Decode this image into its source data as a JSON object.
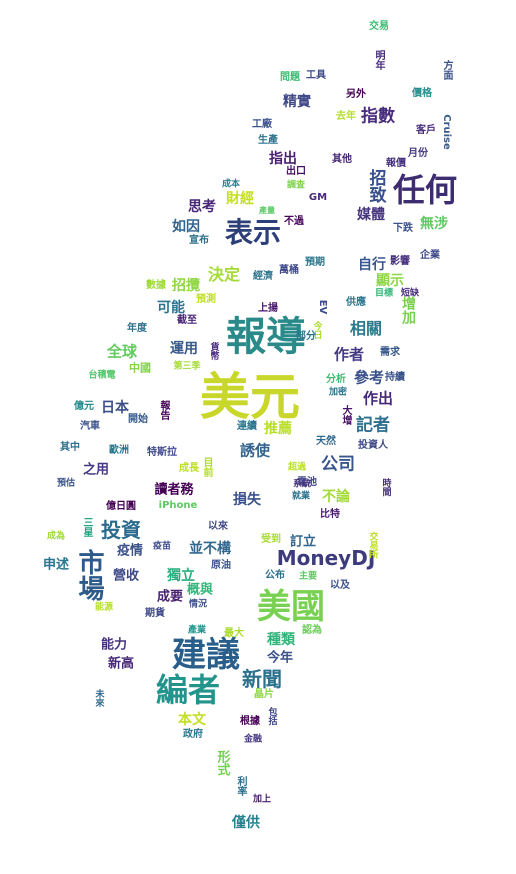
{
  "words": [
    {
      "text": "美元",
      "color": "#c8d72a"
    },
    {
      "text": "報導",
      "color": "#2a8a8a"
    },
    {
      "text": "任何",
      "color": "#3e2c70"
    },
    {
      "text": "表示",
      "color": "#2d3f78"
    },
    {
      "text": "建議",
      "color": "#2a5e8a"
    },
    {
      "text": "編者",
      "color": "#23948b"
    },
    {
      "text": "美國",
      "color": "#79d151"
    },
    {
      "text": "市場",
      "color": "#2e5a8a"
    },
    {
      "text": "MoneyDJ",
      "color": "#3d3b7e"
    },
    {
      "text": "新聞",
      "color": "#2a718e"
    },
    {
      "text": "投資",
      "color": "#2b6c8e"
    },
    {
      "text": "公司",
      "color": "#39568c"
    },
    {
      "text": "記者",
      "color": "#2d6f8e"
    },
    {
      "text": "指數",
      "color": "#472d7b"
    },
    {
      "text": "招致",
      "color": "#38508b"
    },
    {
      "text": "決定",
      "color": "#a5db36"
    },
    {
      "text": "相關",
      "color": "#2b7b8e"
    },
    {
      "text": "作者",
      "color": "#443a83"
    },
    {
      "text": "參考",
      "color": "#3b518b"
    },
    {
      "text": "作出",
      "color": "#472a7a"
    },
    {
      "text": "誘使",
      "color": "#33638d"
    },
    {
      "text": "全球",
      "color": "#62cb5f"
    },
    {
      "text": "日本",
      "color": "#3c4f8a"
    },
    {
      "text": "運用",
      "color": "#38598c"
    },
    {
      "text": "可能",
      "color": "#2b758e"
    },
    {
      "text": "招攬",
      "color": "#8fd744"
    },
    {
      "text": "如因",
      "color": "#32648e"
    },
    {
      "text": "思考",
      "color": "#482576"
    },
    {
      "text": "財經",
      "color": "#c5e021"
    },
    {
      "text": "媒體",
      "color": "#45337d"
    },
    {
      "text": "無涉",
      "color": "#5ec962"
    },
    {
      "text": "精實",
      "color": "#3f4889"
    },
    {
      "text": "指出",
      "color": "#481f70"
    },
    {
      "text": "自行",
      "color": "#3a548c"
    },
    {
      "text": "顯示",
      "color": "#8ed645"
    },
    {
      "text": "增加",
      "color": "#7ad151"
    },
    {
      "text": "推薦",
      "color": "#b8de29"
    },
    {
      "text": "讀者務",
      "color": "#440154"
    },
    {
      "text": "損失",
      "color": "#3b528b"
    },
    {
      "text": "不論",
      "color": "#a2da37"
    },
    {
      "text": "之用",
      "color": "#453781"
    },
    {
      "text": "並不構",
      "color": "#31688e"
    },
    {
      "text": "訂立",
      "color": "#32658e"
    },
    {
      "text": "獨立",
      "color": "#29af7f"
    },
    {
      "text": "成要",
      "color": "#482071"
    },
    {
      "text": "概與",
      "color": "#34b679"
    },
    {
      "text": "種類",
      "color": "#31b57b"
    },
    {
      "text": "今年",
      "color": "#3b518b"
    },
    {
      "text": "能力",
      "color": "#46327e"
    },
    {
      "text": "新高",
      "color": "#482878"
    },
    {
      "text": "營收",
      "color": "#3e4989"
    },
    {
      "text": "疫情",
      "color": "#3b528b"
    },
    {
      "text": "申述",
      "color": "#2a768e"
    },
    {
      "text": "本文",
      "color": "#c2df23"
    },
    {
      "text": "形式",
      "color": "#75d054"
    },
    {
      "text": "僅供",
      "color": "#26828e"
    },
    {
      "text": "交易",
      "color": "#3dbc74"
    },
    {
      "text": "明年",
      "color": "#472c7a"
    },
    {
      "text": "方面",
      "color": "#3b528b"
    },
    {
      "text": "工具",
      "color": "#3e4a89"
    },
    {
      "text": "問題",
      "color": "#3dbc74"
    },
    {
      "text": "價格",
      "color": "#21908d"
    },
    {
      "text": "另外",
      "color": "#440154"
    },
    {
      "text": "去年",
      "color": "#b5de2b"
    },
    {
      "text": "工廠",
      "color": "#3b528b"
    },
    {
      "text": "客戶",
      "color": "#472d7b"
    },
    {
      "text": "Cruise",
      "color": "#38598c"
    },
    {
      "text": "生產",
      "color": "#2c738e"
    },
    {
      "text": "月份",
      "color": "#443983"
    },
    {
      "text": "出口",
      "color": "#471063"
    },
    {
      "text": "其他",
      "color": "#482777"
    },
    {
      "text": "報價",
      "color": "#46337e"
    },
    {
      "text": "成本",
      "color": "#26828e"
    },
    {
      "text": "調查",
      "color": "#7fd34e"
    },
    {
      "text": "GM",
      "color": "#482878"
    },
    {
      "text": "產量",
      "color": "#5cc863"
    },
    {
      "text": "不過",
      "color": "#450559"
    },
    {
      "text": "下跌",
      "color": "#3b528b"
    },
    {
      "text": "宣布",
      "color": "#2d708e"
    },
    {
      "text": "預期",
      "color": "#2a788e"
    },
    {
      "text": "影響",
      "color": "#46307e"
    },
    {
      "text": "企業",
      "color": "#3e4989"
    },
    {
      "text": "經濟",
      "color": "#2c738e"
    },
    {
      "text": "萬桶",
      "color": "#3e4989"
    },
    {
      "text": "數據",
      "color": "#9fda3a"
    },
    {
      "text": "目標",
      "color": "#35b779"
    },
    {
      "text": "短缺",
      "color": "#472c7a"
    },
    {
      "text": "預測",
      "color": "#c2df23"
    },
    {
      "text": "上揚",
      "color": "#481769"
    },
    {
      "text": "EV",
      "color": "#3e4c8a"
    },
    {
      "text": "供應",
      "color": "#2a768e"
    },
    {
      "text": "截至",
      "color": "#482576"
    },
    {
      "text": "今日",
      "color": "#addc30"
    },
    {
      "text": "部分",
      "color": "#2b758e"
    },
    {
      "text": "年度",
      "color": "#2c728e"
    },
    {
      "text": "貨幣",
      "color": "#472a7a"
    },
    {
      "text": "需求",
      "color": "#38588c"
    },
    {
      "text": "中國",
      "color": "#84d44b"
    },
    {
      "text": "第三季",
      "color": "#a5db36"
    },
    {
      "text": "台積電",
      "color": "#52c569"
    },
    {
      "text": "分析",
      "color": "#3fbc73"
    },
    {
      "text": "持續",
      "color": "#3b528b"
    },
    {
      "text": "加密",
      "color": "#2c728e"
    },
    {
      "text": "億元",
      "color": "#238a8d"
    },
    {
      "text": "報告",
      "color": "#440154"
    },
    {
      "text": "汽車",
      "color": "#3b528b"
    },
    {
      "text": "開始",
      "color": "#375b8d"
    },
    {
      "text": "大增",
      "color": "#481467"
    },
    {
      "text": "連續",
      "color": "#2a778e"
    },
    {
      "text": "天然",
      "color": "#31688e"
    },
    {
      "text": "投資人",
      "color": "#3e4a89"
    },
    {
      "text": "其中",
      "color": "#2d718e"
    },
    {
      "text": "歐洲",
      "color": "#2a788e"
    },
    {
      "text": "特斯拉",
      "color": "#3f4889"
    },
    {
      "text": "成長",
      "color": "#bddf26"
    },
    {
      "text": "目前",
      "color": "#b2dd2d"
    },
    {
      "text": "超過",
      "color": "#bade28"
    },
    {
      "text": "電池",
      "color": "#3f4788"
    },
    {
      "text": "時間",
      "color": "#46307e"
    },
    {
      "text": "預估",
      "color": "#3b528b"
    },
    {
      "text": "系統",
      "color": "#46337e"
    },
    {
      "text": "就業",
      "color": "#2c728e"
    },
    {
      "text": "億日圓",
      "color": "#440154"
    },
    {
      "text": "iPhone",
      "color": "#5ec962"
    },
    {
      "text": "比特",
      "color": "#481a6c"
    },
    {
      "text": "成為",
      "color": "#a0da39"
    },
    {
      "text": "三星",
      "color": "#22a785"
    },
    {
      "text": "以來",
      "color": "#3e4989"
    },
    {
      "text": "交易所",
      "color": "#bddf26"
    },
    {
      "text": "疫苗",
      "color": "#3e4c8a"
    },
    {
      "text": "受到",
      "color": "#a8db34"
    },
    {
      "text": "原油",
      "color": "#3b528b"
    },
    {
      "text": "公布",
      "color": "#2e6f8e"
    },
    {
      "text": "主要",
      "color": "#5ec962"
    },
    {
      "text": "以及",
      "color": "#3b528b"
    },
    {
      "text": "能源",
      "color": "#b5de2b"
    },
    {
      "text": "期貨",
      "color": "#3e4989"
    },
    {
      "text": "情況",
      "color": "#3b528b"
    },
    {
      "text": "產業",
      "color": "#20938c"
    },
    {
      "text": "最大",
      "color": "#addc30"
    },
    {
      "text": "認為",
      "color": "#6ccd5a"
    },
    {
      "text": "晶片",
      "color": "#8ed645"
    },
    {
      "text": "未來",
      "color": "#31688e"
    },
    {
      "text": "根據",
      "color": "#440154"
    },
    {
      "text": "包括",
      "color": "#3f4788"
    },
    {
      "text": "政府",
      "color": "#2a788e"
    },
    {
      "text": "金融",
      "color": "#453781"
    },
    {
      "text": "利率",
      "color": "#2c728e"
    },
    {
      "text": "加上",
      "color": "#481a6c"
    }
  ]
}
